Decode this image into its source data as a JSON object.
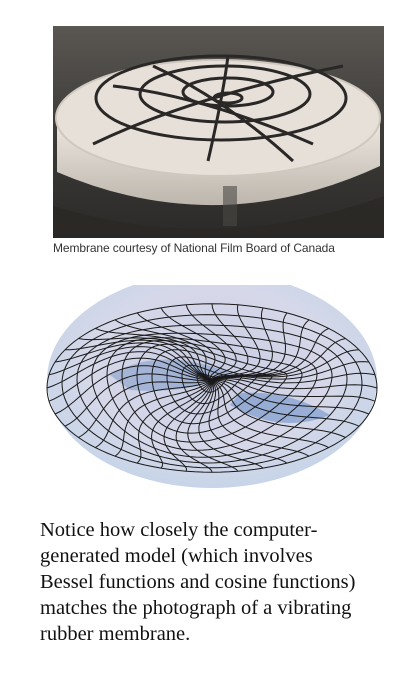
{
  "figure": {
    "photo_alt": "Photograph of a vibrating rubber membrane with nodal circles and lines",
    "caption": "Membrane courtesy of National Film Board of Canada",
    "model_alt": "Computer-generated 3D surface plot of a vibrating circular membrane"
  },
  "body_text": {
    "lines": [
      "Notice how closely the computer-",
      "generated model (which involves",
      "Bessel functions and cosine functions)",
      "matches the photograph of a vibrating",
      "rubber membrane."
    ]
  },
  "colors": {
    "photo_background": "#3a3a3a",
    "membrane_light": "#e6e0d9",
    "surface_light": "#d8dcec",
    "surface_shadow": "#4f86c8",
    "mesh_line": "#1a1a1a"
  }
}
